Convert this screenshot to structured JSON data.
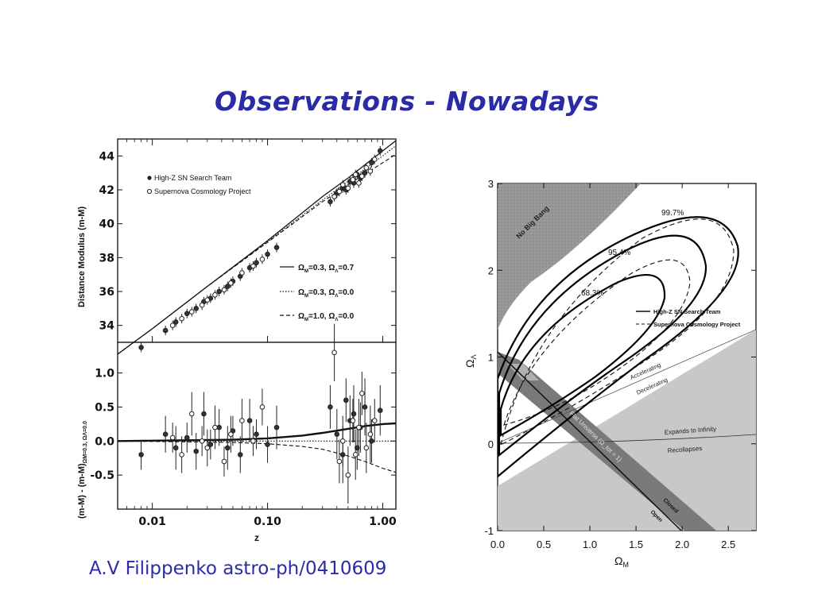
{
  "slide": {
    "title": "Observations - Nowadays",
    "citation": "A.V Filippenko astro-ph/0410609"
  },
  "colors": {
    "title_text": "#2b2ba8",
    "no_big_bang_region": "#9a9a9a",
    "open_universe_region": "#c8c8c8",
    "flat_band": "#7a7a7a"
  },
  "chart_data": [
    {
      "type": "scatter",
      "x_scale": "log",
      "xlim": [
        0.005,
        1.3
      ],
      "xticks": [
        "0.01",
        "0.10",
        "1.00"
      ],
      "xlabel": "z",
      "panels": [
        {
          "ylabel": "Distance Modulus (m-M)",
          "ylim": [
            33,
            45
          ],
          "yticks": [
            "34",
            "36",
            "38",
            "40",
            "42",
            "44"
          ],
          "legend": [
            {
              "marker": "filled-circle",
              "label": "High-Z SN Search Team"
            },
            {
              "marker": "open-circle",
              "label": "Supernova Cosmology Project"
            }
          ],
          "model_legend": [
            {
              "style": "solid",
              "om": "0.3",
              "ol": "0.7"
            },
            {
              "style": "dotted",
              "om": "0.3",
              "ol": "0.0"
            },
            {
              "style": "dashed",
              "om": "1.0",
              "ol": "0.0"
            }
          ],
          "omega_m_symbol": "Ω",
          "omega_m_sub": "M",
          "omega_l_symbol": "Ω",
          "omega_l_sub": "Λ",
          "models": [
            {
              "style": "solid",
              "x": [
                0.005,
                0.01,
                0.03,
                0.1,
                0.3,
                0.5,
                1.0,
                1.3
              ],
              "y": [
                32.3,
                33.8,
                36.3,
                39.0,
                41.6,
                42.7,
                44.3,
                44.9
              ]
            },
            {
              "style": "dotted",
              "x": [
                0.005,
                0.01,
                0.03,
                0.1,
                0.3,
                0.5,
                1.0,
                1.3
              ],
              "y": [
                32.3,
                33.8,
                36.3,
                38.95,
                41.4,
                42.5,
                44.0,
                44.6
              ]
            },
            {
              "style": "dashed",
              "x": [
                0.005,
                0.01,
                0.03,
                0.1,
                0.3,
                0.5,
                1.0,
                1.3
              ],
              "y": [
                32.3,
                33.8,
                36.3,
                38.9,
                41.3,
                42.3,
                43.6,
                44.1
              ]
            }
          ],
          "series": [
            {
              "name": "High-Z SN Search Team",
              "marker": "filled",
              "x": [
                0.008,
                0.013,
                0.016,
                0.02,
                0.024,
                0.028,
                0.032,
                0.038,
                0.045,
                0.05,
                0.058,
                0.07,
                0.08,
                0.1,
                0.12,
                0.35,
                0.4,
                0.45,
                0.48,
                0.52,
                0.56,
                0.6,
                0.64,
                0.7,
                0.8,
                0.95
              ],
              "y": [
                32.7,
                33.7,
                34.2,
                34.7,
                35.0,
                35.4,
                35.6,
                36.0,
                36.3,
                36.6,
                36.9,
                37.4,
                37.7,
                38.2,
                38.6,
                41.3,
                41.8,
                42.1,
                42.0,
                42.5,
                42.4,
                42.9,
                42.7,
                43.0,
                43.6,
                44.3
              ]
            },
            {
              "name": "Supernova Cosmology Project",
              "marker": "open",
              "x": [
                0.015,
                0.018,
                0.022,
                0.027,
                0.03,
                0.035,
                0.042,
                0.048,
                0.06,
                0.075,
                0.09,
                0.38,
                0.42,
                0.45,
                0.5,
                0.55,
                0.58,
                0.62,
                0.66,
                0.72,
                0.78,
                0.85
              ],
              "y": [
                34.0,
                34.4,
                34.8,
                35.2,
                35.5,
                35.8,
                36.1,
                36.5,
                37.1,
                37.5,
                37.9,
                41.6,
                41.9,
                42.3,
                42.1,
                42.6,
                42.9,
                42.4,
                42.8,
                43.3,
                43.1,
                43.8
              ]
            }
          ]
        },
        {
          "ylabel": "(m-M) - (m-M)",
          "ylabel_sub": "ΩM=0.3, ΩΛ=0.0",
          "ylim": [
            -1.0,
            1.45
          ],
          "yticks": [
            "1.0",
            "0.5",
            "0.0",
            "-0.5"
          ],
          "models": [
            {
              "style": "solid",
              "x": [
                0.005,
                0.05,
                0.1,
                0.2,
                0.3,
                0.5,
                0.7,
                1.0,
                1.3
              ],
              "y": [
                0.0,
                0.02,
                0.04,
                0.08,
                0.12,
                0.18,
                0.22,
                0.25,
                0.26
              ]
            },
            {
              "style": "dotted",
              "x": [
                0.005,
                0.5,
                1.3
              ],
              "y": [
                0.0,
                0.0,
                0.0
              ]
            },
            {
              "style": "dashed",
              "x": [
                0.005,
                0.05,
                0.1,
                0.2,
                0.3,
                0.5,
                0.7,
                1.0,
                1.3
              ],
              "y": [
                0.0,
                -0.02,
                -0.04,
                -0.08,
                -0.12,
                -0.22,
                -0.3,
                -0.4,
                -0.46
              ]
            }
          ],
          "series": [
            {
              "name": "High-Z SN Search Team",
              "marker": "filled",
              "x": [
                0.008,
                0.013,
                0.016,
                0.02,
                0.024,
                0.028,
                0.032,
                0.038,
                0.045,
                0.05,
                0.058,
                0.07,
                0.08,
                0.1,
                0.12,
                0.35,
                0.4,
                0.45,
                0.48,
                0.52,
                0.56,
                0.6,
                0.64,
                0.7,
                0.8,
                0.95
              ],
              "y": [
                -0.2,
                0.1,
                -0.1,
                0.05,
                -0.15,
                0.4,
                -0.05,
                0.2,
                -0.1,
                0.15,
                -0.2,
                0.3,
                0.1,
                -0.05,
                0.2,
                0.5,
                0.1,
                -0.2,
                0.6,
                0.3,
                0.4,
                -0.1,
                0.2,
                0.5,
                0.0,
                0.45
              ]
            },
            {
              "name": "Supernova Cosmology Project",
              "marker": "open",
              "x": [
                0.015,
                0.018,
                0.022,
                0.027,
                0.03,
                0.035,
                0.042,
                0.048,
                0.06,
                0.075,
                0.09,
                0.38,
                0.42,
                0.45,
                0.5,
                0.55,
                0.58,
                0.62,
                0.66,
                0.72,
                0.78,
                0.85
              ],
              "y": [
                0.05,
                -0.2,
                0.4,
                0.0,
                -0.1,
                0.2,
                -0.3,
                0.1,
                0.3,
                0.0,
                0.5,
                1.3,
                -0.3,
                0.0,
                -0.5,
                0.3,
                -0.2,
                0.2,
                0.7,
                -0.1,
                0.1,
                0.3
              ]
            }
          ]
        }
      ]
    },
    {
      "type": "contour",
      "xlim": [
        0.0,
        2.8
      ],
      "ylim": [
        -1.0,
        3.0
      ],
      "xticks": [
        "0.0",
        "0.5",
        "1.0",
        "1.5",
        "2.0",
        "2.5"
      ],
      "yticks": [
        "-1",
        "0",
        "1",
        "2",
        "3"
      ],
      "xlabel": "Ω",
      "xlabel_sub": "M",
      "ylabel": "Ω",
      "ylabel_sub": "Λ",
      "legend": [
        {
          "style": "solid",
          "label": "High-Z SN Search Team"
        },
        {
          "style": "dashed",
          "label": "Supernova Cosmology Project"
        }
      ],
      "contour_levels": [
        "68.3%",
        "95.4%",
        "99.7%"
      ],
      "region_labels": {
        "no_big_bang": "No Big Bang",
        "accelerating": "Accelerating",
        "decelerating": "Decelerating",
        "expands": "Expands to Infinity",
        "recollapses": "Recollapses",
        "flat": "Flat Universe (Ω_tot = 1)",
        "closed": "Closed",
        "open": "Open"
      },
      "lines": {
        "accel_decel": {
          "x": [
            0.0,
            2.8
          ],
          "y": [
            0.0,
            1.4
          ]
        },
        "flat": {
          "x": [
            0.0,
            2.0
          ],
          "y": [
            1.0,
            -1.0
          ]
        }
      }
    }
  ]
}
